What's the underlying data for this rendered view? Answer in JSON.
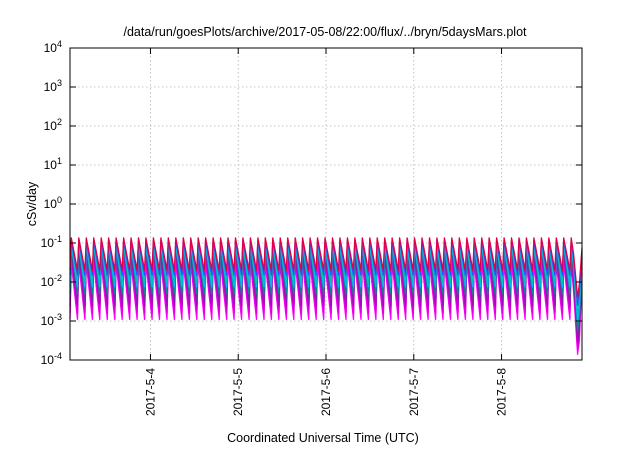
{
  "chart_data": {
    "type": "line",
    "title": "/data/run/goesPlots/archive/2017-05-08/22:00/flux/../bryn/5daysMars.plot",
    "xlabel": "Coordinated Universal Time (UTC)",
    "ylabel": "cSv/day",
    "yscale": "log",
    "ylim": [
      0.0001,
      10000
    ],
    "yticks": [
      {
        "value": 0.0001,
        "base": "10",
        "exp": "-4"
      },
      {
        "value": 0.001,
        "base": "10",
        "exp": "-3"
      },
      {
        "value": 0.01,
        "base": "10",
        "exp": "-2"
      },
      {
        "value": 0.1,
        "base": "10",
        "exp": "-1"
      },
      {
        "value": 1,
        "base": "10",
        "exp": "0"
      },
      {
        "value": 10,
        "base": "10",
        "exp": "1"
      },
      {
        "value": 100,
        "base": "10",
        "exp": "2"
      },
      {
        "value": 1000,
        "base": "10",
        "exp": "3"
      },
      {
        "value": 10000,
        "base": "10",
        "exp": "4"
      }
    ],
    "x_start": "2017-05-03T02:00",
    "x_end": "2017-05-08T22:00",
    "xticks": [
      "2017-5-4",
      "2017-5-5",
      "2017-5-6",
      "2017-5-7",
      "2017-5-8"
    ],
    "grid": true,
    "cycle_hours": 2.04,
    "series": [
      {
        "color": "#ff00ff",
        "peak": 0.03,
        "trough": 0.0011,
        "end_trough": 0.00014
      },
      {
        "color": "#dd00dd",
        "peak": 0.042,
        "trough": 0.0016,
        "end_trough": 0.0002
      },
      {
        "color": "#b000c0",
        "peak": 0.055,
        "trough": 0.0024,
        "end_trough": 0.00028
      },
      {
        "color": "#7030a0",
        "peak": 0.07,
        "trough": 0.0034,
        "end_trough": 0.0004
      },
      {
        "color": "#008c8c",
        "peak": 0.08,
        "trough": 0.005,
        "end_trough": 0.0006
      },
      {
        "color": "#00b8ff",
        "peak": 0.092,
        "trough": 0.0075,
        "end_trough": 0.001
      },
      {
        "color": "#00c0c0",
        "peak": 0.1,
        "trough": 0.01,
        "end_trough": 0.0015
      },
      {
        "color": "#3050ff",
        "peak": 0.115,
        "trough": 0.015,
        "end_trough": 0.0025
      },
      {
        "color": "#e0004a",
        "peak": 0.135,
        "trough": 0.02,
        "end_trough": 0.004
      }
    ]
  }
}
